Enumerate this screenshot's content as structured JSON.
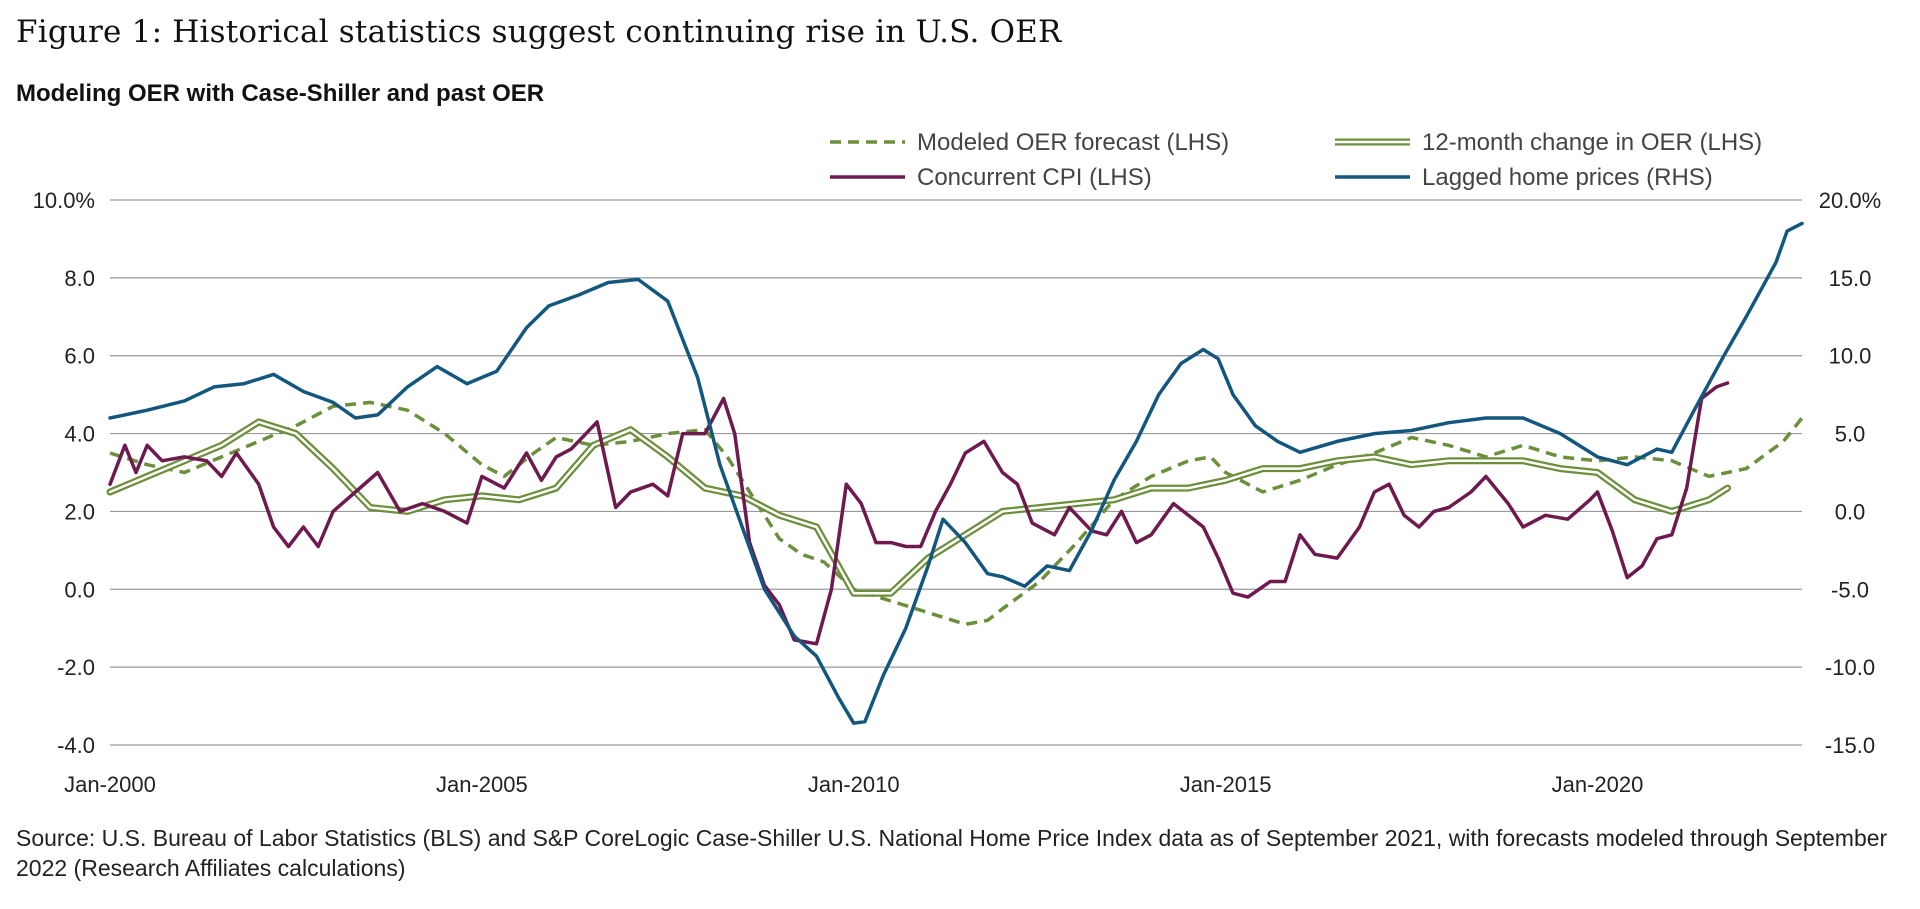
{
  "figure_title": "Figure 1: Historical statistics suggest continuing rise in U.S. OER",
  "subtitle": "Modeling OER with Case-Shiller and past OER",
  "source": "Source: U.S. Bureau of Labor Statistics (BLS) and S&P CoreLogic Case-Shiller U.S. National Home Price Index data as of September 2021, with forecasts modeled through September 2022 (Research Affiliates calculations)",
  "colors": {
    "forecast": "#6b8f3b",
    "oer": "#6b8f3b",
    "cpi": "#6e1a4e",
    "home_prices": "#13577f",
    "grid": "#9a9a9a"
  },
  "chart_data": {
    "type": "line",
    "x_range": [
      2000.0,
      2022.75
    ],
    "x_ticks": [
      {
        "x": 2000,
        "label": "Jan-2000"
      },
      {
        "x": 2005,
        "label": "Jan-2005"
      },
      {
        "x": 2010,
        "label": "Jan-2010"
      },
      {
        "x": 2015,
        "label": "Jan-2015"
      },
      {
        "x": 2020,
        "label": "Jan-2020"
      }
    ],
    "y_left": {
      "range": [
        -4,
        10
      ],
      "ticks": [
        {
          "v": 10,
          "label": "10.0%"
        },
        {
          "v": 8,
          "label": "8.0"
        },
        {
          "v": 6,
          "label": "6.0"
        },
        {
          "v": 4,
          "label": "4.0"
        },
        {
          "v": 2,
          "label": "2.0"
        },
        {
          "v": 0,
          "label": "0.0"
        },
        {
          "v": -2,
          "label": "-2.0"
        },
        {
          "v": -4,
          "label": "-4.0"
        }
      ]
    },
    "y_right": {
      "range": [
        -15,
        20
      ],
      "ticks": [
        {
          "v": 20,
          "label": "20.0%"
        },
        {
          "v": 15,
          "label": "15.0"
        },
        {
          "v": 10,
          "label": "10.0"
        },
        {
          "v": 5,
          "label": "5.0"
        },
        {
          "v": 0,
          "label": "0.0"
        },
        {
          "v": -5,
          "label": "-5.0"
        },
        {
          "v": -10,
          "label": "-10.0"
        },
        {
          "v": -15,
          "label": "-15.0"
        }
      ]
    },
    "grid": true,
    "legend_position": "top-right",
    "series": [
      {
        "name": "Modeled OER forecast (LHS)",
        "key": "forecast",
        "axis": "left",
        "style": "dashed",
        "points": [
          [
            2000.0,
            3.5
          ],
          [
            2000.5,
            3.2
          ],
          [
            2001.0,
            3.0
          ],
          [
            2001.5,
            3.4
          ],
          [
            2002.0,
            3.8
          ],
          [
            2002.5,
            4.2
          ],
          [
            2002.8,
            4.5
          ],
          [
            2003.0,
            4.7
          ],
          [
            2003.5,
            4.8
          ],
          [
            2004.0,
            4.6
          ],
          [
            2004.5,
            4.0
          ],
          [
            2005.0,
            3.2
          ],
          [
            2005.3,
            2.9
          ],
          [
            2005.7,
            3.5
          ],
          [
            2006.0,
            3.9
          ],
          [
            2006.5,
            3.7
          ],
          [
            2007.0,
            3.8
          ],
          [
            2007.5,
            4.0
          ],
          [
            2008.0,
            4.1
          ],
          [
            2008.3,
            3.4
          ],
          [
            2008.7,
            2.2
          ],
          [
            2009.0,
            1.3
          ],
          [
            2009.3,
            0.9
          ],
          [
            2009.6,
            0.7
          ],
          [
            2010.0,
            0.0
          ],
          [
            2010.5,
            -0.3
          ],
          [
            2011.0,
            -0.6
          ],
          [
            2011.5,
            -0.9
          ],
          [
            2011.8,
            -0.8
          ],
          [
            2012.0,
            -0.5
          ],
          [
            2012.5,
            0.2
          ],
          [
            2013.0,
            1.2
          ],
          [
            2013.5,
            2.3
          ],
          [
            2014.0,
            2.9
          ],
          [
            2014.5,
            3.3
          ],
          [
            2014.8,
            3.4
          ],
          [
            2015.0,
            3.0
          ],
          [
            2015.5,
            2.5
          ],
          [
            2016.0,
            2.8
          ],
          [
            2016.5,
            3.2
          ],
          [
            2017.0,
            3.5
          ],
          [
            2017.5,
            3.9
          ],
          [
            2018.0,
            3.7
          ],
          [
            2018.5,
            3.4
          ],
          [
            2019.0,
            3.7
          ],
          [
            2019.5,
            3.4
          ],
          [
            2020.0,
            3.3
          ],
          [
            2020.5,
            3.4
          ],
          [
            2021.0,
            3.3
          ],
          [
            2021.5,
            2.9
          ],
          [
            2022.0,
            3.1
          ],
          [
            2022.5,
            3.8
          ],
          [
            2022.75,
            4.4
          ]
        ]
      },
      {
        "name": "12-month change in OER (LHS)",
        "key": "oer",
        "axis": "left",
        "style": "double",
        "points": [
          [
            2000.0,
            2.5
          ],
          [
            2000.5,
            2.9
          ],
          [
            2001.0,
            3.3
          ],
          [
            2001.5,
            3.7
          ],
          [
            2002.0,
            4.3
          ],
          [
            2002.5,
            4.0
          ],
          [
            2003.0,
            3.1
          ],
          [
            2003.5,
            2.1
          ],
          [
            2004.0,
            2.0
          ],
          [
            2004.5,
            2.3
          ],
          [
            2005.0,
            2.4
          ],
          [
            2005.5,
            2.3
          ],
          [
            2006.0,
            2.6
          ],
          [
            2006.5,
            3.7
          ],
          [
            2007.0,
            4.1
          ],
          [
            2007.5,
            3.4
          ],
          [
            2008.0,
            2.6
          ],
          [
            2008.5,
            2.4
          ],
          [
            2009.0,
            1.9
          ],
          [
            2009.5,
            1.6
          ],
          [
            2010.0,
            -0.1
          ],
          [
            2010.5,
            -0.1
          ],
          [
            2011.0,
            0.8
          ],
          [
            2011.5,
            1.4
          ],
          [
            2012.0,
            2.0
          ],
          [
            2012.5,
            2.1
          ],
          [
            2013.0,
            2.2
          ],
          [
            2013.5,
            2.3
          ],
          [
            2014.0,
            2.6
          ],
          [
            2014.5,
            2.6
          ],
          [
            2015.0,
            2.8
          ],
          [
            2015.5,
            3.1
          ],
          [
            2016.0,
            3.1
          ],
          [
            2016.5,
            3.3
          ],
          [
            2017.0,
            3.4
          ],
          [
            2017.5,
            3.2
          ],
          [
            2018.0,
            3.3
          ],
          [
            2018.5,
            3.3
          ],
          [
            2019.0,
            3.3
          ],
          [
            2019.5,
            3.1
          ],
          [
            2020.0,
            3.0
          ],
          [
            2020.5,
            2.3
          ],
          [
            2021.0,
            2.0
          ],
          [
            2021.5,
            2.3
          ],
          [
            2021.75,
            2.6
          ]
        ]
      },
      {
        "name": "Concurrent CPI (LHS)",
        "key": "cpi",
        "axis": "left",
        "style": "solid",
        "points": [
          [
            2000.0,
            2.7
          ],
          [
            2000.2,
            3.7
          ],
          [
            2000.35,
            3.0
          ],
          [
            2000.5,
            3.7
          ],
          [
            2000.7,
            3.3
          ],
          [
            2001.0,
            3.4
          ],
          [
            2001.3,
            3.3
          ],
          [
            2001.5,
            2.9
          ],
          [
            2001.7,
            3.5
          ],
          [
            2002.0,
            2.7
          ],
          [
            2002.2,
            1.6
          ],
          [
            2002.4,
            1.1
          ],
          [
            2002.6,
            1.6
          ],
          [
            2002.8,
            1.1
          ],
          [
            2003.0,
            2.0
          ],
          [
            2003.3,
            2.5
          ],
          [
            2003.6,
            3.0
          ],
          [
            2003.9,
            2.0
          ],
          [
            2004.2,
            2.2
          ],
          [
            2004.5,
            2.0
          ],
          [
            2004.8,
            1.7
          ],
          [
            2005.0,
            2.9
          ],
          [
            2005.3,
            2.6
          ],
          [
            2005.6,
            3.5
          ],
          [
            2005.8,
            2.8
          ],
          [
            2006.0,
            3.4
          ],
          [
            2006.2,
            3.6
          ],
          [
            2006.4,
            4.0
          ],
          [
            2006.55,
            4.3
          ],
          [
            2006.8,
            2.1
          ],
          [
            2007.0,
            2.5
          ],
          [
            2007.3,
            2.7
          ],
          [
            2007.5,
            2.4
          ],
          [
            2007.7,
            4.0
          ],
          [
            2008.0,
            4.0
          ],
          [
            2008.25,
            4.9
          ],
          [
            2008.4,
            4.0
          ],
          [
            2008.6,
            1.2
          ],
          [
            2008.8,
            0.1
          ],
          [
            2009.0,
            -0.4
          ],
          [
            2009.2,
            -1.3
          ],
          [
            2009.5,
            -1.4
          ],
          [
            2009.7,
            0.0
          ],
          [
            2009.9,
            2.7
          ],
          [
            2010.1,
            2.2
          ],
          [
            2010.3,
            1.2
          ],
          [
            2010.5,
            1.2
          ],
          [
            2010.7,
            1.1
          ],
          [
            2010.9,
            1.1
          ],
          [
            2011.1,
            2.0
          ],
          [
            2011.3,
            2.7
          ],
          [
            2011.5,
            3.5
          ],
          [
            2011.75,
            3.8
          ],
          [
            2012.0,
            3.0
          ],
          [
            2012.2,
            2.7
          ],
          [
            2012.4,
            1.7
          ],
          [
            2012.7,
            1.4
          ],
          [
            2012.9,
            2.1
          ],
          [
            2013.2,
            1.5
          ],
          [
            2013.4,
            1.4
          ],
          [
            2013.6,
            2.0
          ],
          [
            2013.8,
            1.2
          ],
          [
            2014.0,
            1.4
          ],
          [
            2014.3,
            2.2
          ],
          [
            2014.5,
            1.9
          ],
          [
            2014.7,
            1.6
          ],
          [
            2014.9,
            0.8
          ],
          [
            2015.1,
            -0.1
          ],
          [
            2015.3,
            -0.2
          ],
          [
            2015.6,
            0.2
          ],
          [
            2015.8,
            0.2
          ],
          [
            2016.0,
            1.4
          ],
          [
            2016.2,
            0.9
          ],
          [
            2016.5,
            0.8
          ],
          [
            2016.8,
            1.6
          ],
          [
            2017.0,
            2.5
          ],
          [
            2017.2,
            2.7
          ],
          [
            2017.4,
            1.9
          ],
          [
            2017.6,
            1.6
          ],
          [
            2017.8,
            2.0
          ],
          [
            2018.0,
            2.1
          ],
          [
            2018.3,
            2.5
          ],
          [
            2018.5,
            2.9
          ],
          [
            2018.8,
            2.2
          ],
          [
            2019.0,
            1.6
          ],
          [
            2019.3,
            1.9
          ],
          [
            2019.6,
            1.8
          ],
          [
            2019.9,
            2.3
          ],
          [
            2020.0,
            2.5
          ],
          [
            2020.2,
            1.5
          ],
          [
            2020.4,
            0.3
          ],
          [
            2020.6,
            0.6
          ],
          [
            2020.8,
            1.3
          ],
          [
            2021.0,
            1.4
          ],
          [
            2021.2,
            2.6
          ],
          [
            2021.4,
            4.9
          ],
          [
            2021.6,
            5.2
          ],
          [
            2021.75,
            5.3
          ]
        ]
      },
      {
        "name": "Lagged home prices (RHS)",
        "key": "home_prices",
        "axis": "right",
        "style": "solid",
        "points": [
          [
            2000.0,
            6.0
          ],
          [
            2000.5,
            6.5
          ],
          [
            2001.0,
            7.1
          ],
          [
            2001.4,
            8.0
          ],
          [
            2001.8,
            8.2
          ],
          [
            2002.2,
            8.8
          ],
          [
            2002.6,
            7.7
          ],
          [
            2003.0,
            7.0
          ],
          [
            2003.3,
            6.0
          ],
          [
            2003.6,
            6.2
          ],
          [
            2004.0,
            8.0
          ],
          [
            2004.4,
            9.3
          ],
          [
            2004.8,
            8.2
          ],
          [
            2005.2,
            9.0
          ],
          [
            2005.6,
            11.8
          ],
          [
            2005.9,
            13.2
          ],
          [
            2006.3,
            13.9
          ],
          [
            2006.7,
            14.7
          ],
          [
            2007.1,
            14.9
          ],
          [
            2007.5,
            13.5
          ],
          [
            2007.9,
            8.6
          ],
          [
            2008.2,
            3.0
          ],
          [
            2008.5,
            -1.0
          ],
          [
            2008.8,
            -5.0
          ],
          [
            2009.2,
            -8.0
          ],
          [
            2009.5,
            -9.3
          ],
          [
            2009.8,
            -12.0
          ],
          [
            2010.0,
            -13.6
          ],
          [
            2010.15,
            -13.5
          ],
          [
            2010.4,
            -10.5
          ],
          [
            2010.7,
            -7.5
          ],
          [
            2011.0,
            -3.5
          ],
          [
            2011.2,
            -0.5
          ],
          [
            2011.5,
            -2.0
          ],
          [
            2011.8,
            -4.0
          ],
          [
            2012.0,
            -4.2
          ],
          [
            2012.3,
            -4.8
          ],
          [
            2012.6,
            -3.5
          ],
          [
            2012.9,
            -3.8
          ],
          [
            2013.2,
            -1.2
          ],
          [
            2013.5,
            2.0
          ],
          [
            2013.8,
            4.5
          ],
          [
            2014.1,
            7.5
          ],
          [
            2014.4,
            9.5
          ],
          [
            2014.7,
            10.4
          ],
          [
            2014.9,
            9.8
          ],
          [
            2015.1,
            7.5
          ],
          [
            2015.4,
            5.5
          ],
          [
            2015.7,
            4.5
          ],
          [
            2016.0,
            3.8
          ],
          [
            2016.5,
            4.5
          ],
          [
            2017.0,
            5.0
          ],
          [
            2017.5,
            5.2
          ],
          [
            2018.0,
            5.7
          ],
          [
            2018.5,
            6.0
          ],
          [
            2019.0,
            6.0
          ],
          [
            2019.5,
            5.0
          ],
          [
            2020.0,
            3.5
          ],
          [
            2020.4,
            3.0
          ],
          [
            2020.8,
            4.0
          ],
          [
            2021.0,
            3.8
          ],
          [
            2021.3,
            6.5
          ],
          [
            2021.7,
            10.0
          ],
          [
            2022.0,
            12.5
          ],
          [
            2022.4,
            16.0
          ],
          [
            2022.55,
            18.0
          ],
          [
            2022.75,
            18.5
          ]
        ]
      }
    ]
  }
}
